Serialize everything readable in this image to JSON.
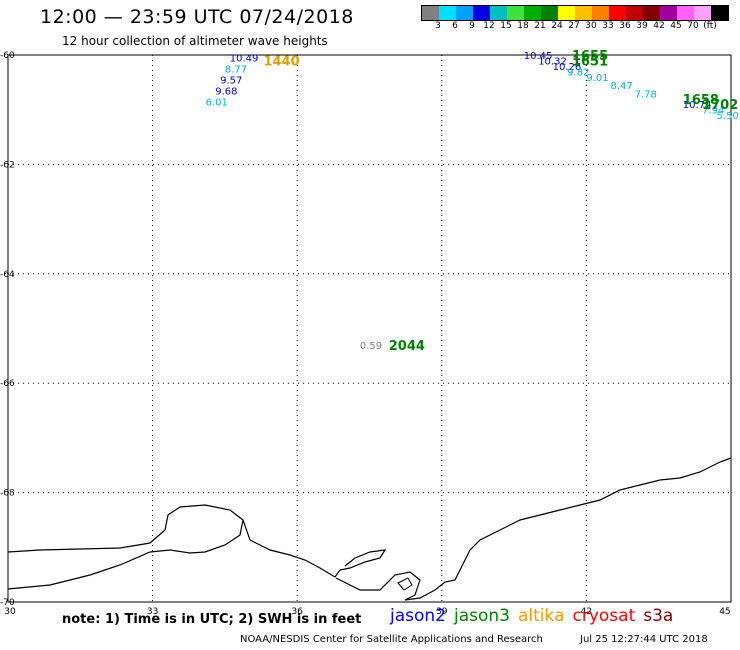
{
  "header": {
    "title": "12:00 — 23:59 UTC 07/24/2018",
    "subtitle": "12 hour collection of altimeter wave heights"
  },
  "colorbar": {
    "swatches": [
      "#808080",
      "#00e0ff",
      "#00a0ff",
      "#0000e0",
      "#00c0c0",
      "#40e040",
      "#00b000",
      "#008000",
      "#ffff00",
      "#ffc000",
      "#ff8000",
      "#ff0000",
      "#c00000",
      "#800000",
      "#a000a0",
      "#ff60ff",
      "#ffa0ff",
      "#000000"
    ],
    "labels": [
      "3",
      "6",
      "9",
      "12",
      "15",
      "18",
      "21",
      "24",
      "27",
      "30",
      "33",
      "36",
      "39",
      "42",
      "45",
      "70",
      "(ft)"
    ]
  },
  "axes": {
    "lon_ticks": [
      "30",
      "33",
      "36",
      "39",
      "42",
      "45"
    ],
    "lat_ticks": [
      "-60",
      "-62",
      "-64",
      "-66",
      "-68",
      "-70"
    ]
  },
  "chart_data": {
    "type": "map",
    "xlim": [
      30,
      45
    ],
    "ylim": [
      -70,
      -60
    ],
    "x_ticks": [
      30,
      33,
      36,
      39,
      42,
      45
    ],
    "y_ticks": [
      -60,
      -62,
      -64,
      -66,
      -68,
      -70
    ],
    "time_labels": [
      {
        "text": "1440",
        "lon": 35.3,
        "lat": -60.1,
        "color": "#e0a000"
      },
      {
        "text": "2044",
        "lon": 37.9,
        "lat": -65.3,
        "color": "#008000"
      },
      {
        "text": "1651",
        "lon": 41.7,
        "lat": -60.1,
        "color": "#008000"
      },
      {
        "text": "1655",
        "lon": 41.7,
        "lat": -60.0,
        "color": "#008000"
      },
      {
        "text": "1658",
        "lon": 44.0,
        "lat": -60.8,
        "color": "#008000"
      },
      {
        "text": "1702",
        "lon": 44.4,
        "lat": -60.9,
        "color": "#008000"
      }
    ],
    "swh_labels": [
      {
        "value": "10.49",
        "lon": 34.6,
        "lat": -60.05,
        "color": "#0000c0"
      },
      {
        "value": "8.77",
        "lon": 34.5,
        "lat": -60.25,
        "color": "#00a0ff"
      },
      {
        "value": "9.57",
        "lon": 34.4,
        "lat": -60.45,
        "color": "#0000c0"
      },
      {
        "value": "9.68",
        "lon": 34.3,
        "lat": -60.65,
        "color": "#0000c0"
      },
      {
        "value": "6.01",
        "lon": 34.1,
        "lat": -60.85,
        "color": "#00b0e0"
      },
      {
        "value": "0.59",
        "lon": 37.3,
        "lat": -65.3,
        "color": "#808080"
      },
      {
        "value": "10.45",
        "lon": 40.7,
        "lat": -60.0,
        "color": "#0000c0"
      },
      {
        "value": "10.32",
        "lon": 41.0,
        "lat": -60.1,
        "color": "#0000c0"
      },
      {
        "value": "10.26",
        "lon": 41.3,
        "lat": -60.2,
        "color": "#0000c0"
      },
      {
        "value": "9.82",
        "lon": 41.6,
        "lat": -60.3,
        "color": "#00a0ff"
      },
      {
        "value": "9.01",
        "lon": 42.0,
        "lat": -60.4,
        "color": "#00b0e0"
      },
      {
        "value": "8.47",
        "lon": 42.5,
        "lat": -60.55,
        "color": "#00b0e0"
      },
      {
        "value": "7.78",
        "lon": 43.0,
        "lat": -60.7,
        "color": "#00b0e0"
      },
      {
        "value": "10.74",
        "lon": 44.0,
        "lat": -60.9,
        "color": "#0000c0"
      },
      {
        "value": "7.94",
        "lon": 44.4,
        "lat": -61.0,
        "color": "#00b0e0"
      },
      {
        "value": "5.50",
        "lon": 44.7,
        "lat": -61.1,
        "color": "#00c0e0"
      }
    ]
  },
  "footer": {
    "note": "note: 1) Time is in UTC; 2) SWH is in feet",
    "legend": [
      {
        "name": "jason2",
        "color": "#0000ff"
      },
      {
        "name": "jason3",
        "color": "#008000"
      },
      {
        "name": "altika",
        "color": "#ff9900"
      },
      {
        "name": "cryosat",
        "color": "#ff0000"
      },
      {
        "name": "s3a",
        "color": "#800000"
      }
    ],
    "credit": "NOAA/NESDIS Center for Satellite Applications and Research",
    "timestamp": "Jul 25 12:27:44 UTC 2018"
  }
}
